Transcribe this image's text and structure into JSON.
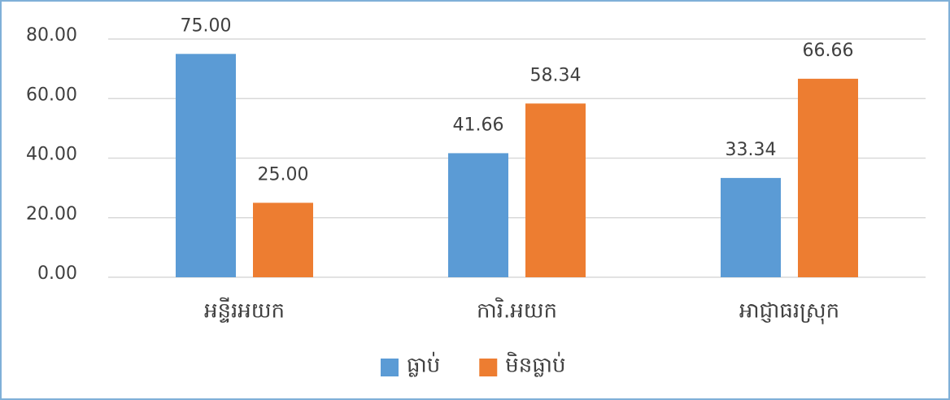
{
  "chart_data": {
    "type": "bar",
    "categories": [
      "អន្ទីរអយក",
      "ការិ.អយក",
      "អាជ្ញាធរស្រុក"
    ],
    "series": [
      {
        "name": "ធ្លាប់",
        "color": "#5b9bd5",
        "values": [
          75,
          41.66,
          33.34
        ],
        "value_labels": [
          "75.00",
          "41.66",
          "33.34"
        ]
      },
      {
        "name": "មិនធ្លាប់",
        "color": "#ed7d31",
        "values": [
          25,
          58.34,
          66.66
        ],
        "value_labels": [
          "25.00",
          "58.34",
          "66.66"
        ]
      }
    ],
    "ylim": [
      0,
      80
    ],
    "yticks": [
      {
        "value": 0,
        "label": "0.00"
      },
      {
        "value": 20,
        "label": "20.00"
      },
      {
        "value": 40,
        "label": "40.00"
      },
      {
        "value": 60,
        "label": "60.00"
      },
      {
        "value": 80,
        "label": "80.00"
      }
    ],
    "grid": true,
    "legend": "bottom"
  }
}
